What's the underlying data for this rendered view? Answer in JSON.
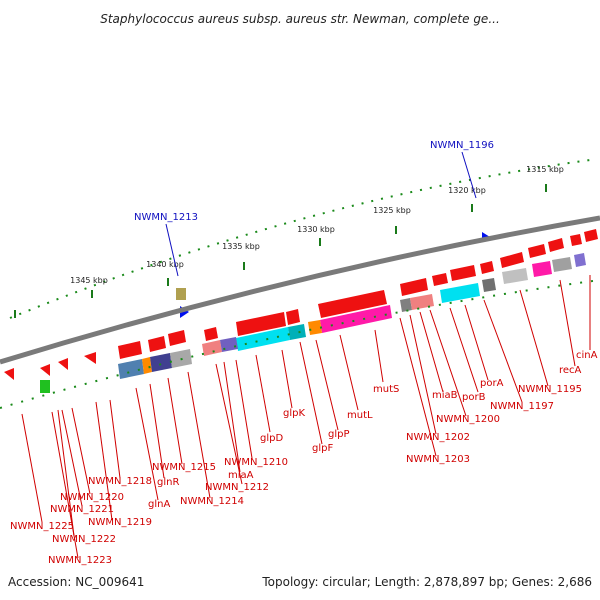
{
  "title": "Staphylococcus aureus subsp. aureus str. Newman, complete ge...",
  "footer": {
    "accession": "Accession: NC_009641",
    "summary": "Topology: circular; Length: 2,878,897 bp; Genes: 2,686"
  },
  "colors": {
    "backbone": "#808080",
    "forward_gene": "#ee0000",
    "reverse_gene": "#ee0000",
    "label_red": "#d00000",
    "label_blue": "#1010c0",
    "tick_green": "#006600",
    "magenta": "#ff1aa8",
    "cyan": "#00e0f0"
  },
  "scale_ticks": [
    {
      "label": "1315 kbp"
    },
    {
      "label": "1320 kbp"
    },
    {
      "label": "1325 kbp"
    },
    {
      "label": "1330 kbp"
    },
    {
      "label": "1335 kbp"
    },
    {
      "label": "1340 kbp"
    },
    {
      "label": "1345 kbp"
    }
  ],
  "blue_labels": [
    {
      "label": "NWMN_1196"
    },
    {
      "label": "NWMN_1213"
    }
  ],
  "gene_labels": [
    {
      "label": "cinA"
    },
    {
      "label": "recA"
    },
    {
      "label": "NWMN_1195"
    },
    {
      "label": "NWMN_1197"
    },
    {
      "label": "porA"
    },
    {
      "label": "porB"
    },
    {
      "label": "NWMN_1200"
    },
    {
      "label": "miaB"
    },
    {
      "label": "NWMN_1202"
    },
    {
      "label": "NWMN_1203"
    },
    {
      "label": "mutS"
    },
    {
      "label": "mutL"
    },
    {
      "label": "glpP"
    },
    {
      "label": "glpF"
    },
    {
      "label": "glpK"
    },
    {
      "label": "glpD"
    },
    {
      "label": "NWMN_1210"
    },
    {
      "label": "miaA"
    },
    {
      "label": "NWMN_1212"
    },
    {
      "label": "NWMN_1214"
    },
    {
      "label": "NWMN_1215"
    },
    {
      "label": "glnR"
    },
    {
      "label": "glnA"
    },
    {
      "label": "NWMN_1218"
    },
    {
      "label": "NWMN_1219"
    },
    {
      "label": "NWMN_1220"
    },
    {
      "label": "NWMN_1221"
    },
    {
      "label": "NWMN_1222"
    },
    {
      "label": "NWMN_1223"
    },
    {
      "label": "NWMN_1225"
    }
  ]
}
